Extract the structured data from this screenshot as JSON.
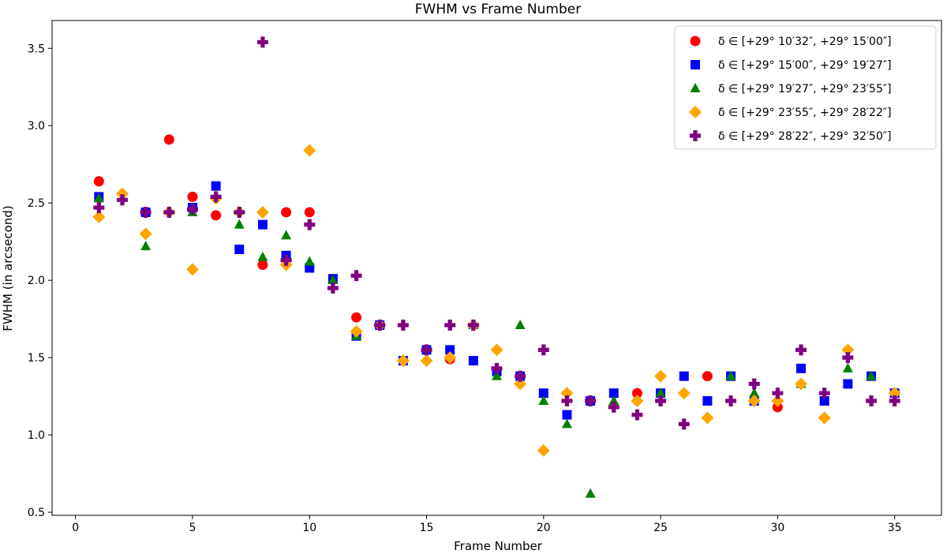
{
  "chart_data": {
    "type": "scatter",
    "title": "FWHM vs Frame Number",
    "xlabel": "Frame Number",
    "ylabel": "FWHM (in arcsecond)",
    "xlim": [
      -1,
      37
    ],
    "ylim": [
      0.48,
      3.68
    ],
    "xticks": [
      0,
      5,
      10,
      15,
      20,
      25,
      30,
      35
    ],
    "yticks": [
      0.5,
      1.0,
      1.5,
      2.0,
      2.5,
      3.0,
      3.5
    ],
    "xtick_labels": [
      "0",
      "5",
      "10",
      "15",
      "20",
      "25",
      "30",
      "35"
    ],
    "ytick_labels": [
      "0.5",
      "1.0",
      "1.5",
      "2.0",
      "2.5",
      "3.0",
      "3.5"
    ],
    "grid": false,
    "legend_position": "top-right",
    "series": [
      {
        "name": "δ ∈ [+29° 10′32″, +29° 15′00″]",
        "color": "#ff0000",
        "marker": "circle",
        "points": [
          [
            1,
            2.64
          ],
          [
            4,
            2.91
          ],
          [
            5,
            2.54
          ],
          [
            6,
            2.42
          ],
          [
            8,
            2.1
          ],
          [
            9,
            2.44
          ],
          [
            10,
            2.44
          ],
          [
            12,
            1.76
          ],
          [
            16,
            1.49
          ],
          [
            24,
            1.27
          ],
          [
            27,
            1.38
          ],
          [
            30,
            1.18
          ]
        ]
      },
      {
        "name": "δ ∈ [+29° 15′00″, +29° 19′27″]",
        "color": "#0000ff",
        "marker": "square",
        "points": [
          [
            1,
            2.54
          ],
          [
            3,
            2.44
          ],
          [
            5,
            2.47
          ],
          [
            6,
            2.61
          ],
          [
            7,
            2.2
          ],
          [
            8,
            2.36
          ],
          [
            9,
            2.16
          ],
          [
            10,
            2.08
          ],
          [
            11,
            2.01
          ],
          [
            12,
            1.64
          ],
          [
            13,
            1.71
          ],
          [
            14,
            1.48
          ],
          [
            15,
            1.55
          ],
          [
            16,
            1.55
          ],
          [
            17,
            1.48
          ],
          [
            18,
            1.41
          ],
          [
            19,
            1.38
          ],
          [
            20,
            1.27
          ],
          [
            21,
            1.13
          ],
          [
            22,
            1.22
          ],
          [
            23,
            1.27
          ],
          [
            25,
            1.27
          ],
          [
            26,
            1.38
          ],
          [
            27,
            1.22
          ],
          [
            28,
            1.38
          ],
          [
            29,
            1.22
          ],
          [
            31,
            1.43
          ],
          [
            32,
            1.22
          ],
          [
            33,
            1.33
          ],
          [
            34,
            1.38
          ],
          [
            35,
            1.27
          ]
        ]
      },
      {
        "name": "δ ∈ [+29° 19′27″, +29° 23′55″]",
        "color": "#008000",
        "marker": "triangle",
        "points": [
          [
            1,
            2.53
          ],
          [
            3,
            2.22
          ],
          [
            5,
            2.44
          ],
          [
            7,
            2.36
          ],
          [
            8,
            2.15
          ],
          [
            9,
            2.29
          ],
          [
            10,
            2.12
          ],
          [
            11,
            2.0
          ],
          [
            12,
            1.64
          ],
          [
            17,
            1.71
          ],
          [
            18,
            1.38
          ],
          [
            19,
            1.71
          ],
          [
            20,
            1.22
          ],
          [
            21,
            1.07
          ],
          [
            22,
            0.62
          ],
          [
            23,
            1.22
          ],
          [
            25,
            1.27
          ],
          [
            28,
            1.38
          ],
          [
            29,
            1.27
          ],
          [
            31,
            1.33
          ],
          [
            33,
            1.43
          ],
          [
            34,
            1.38
          ]
        ]
      },
      {
        "name": "δ ∈ [+29° 23′55″, +29° 28′22″]",
        "color": "#ffa500",
        "marker": "diamond",
        "points": [
          [
            1,
            2.41
          ],
          [
            2,
            2.56
          ],
          [
            3,
            2.3
          ],
          [
            4,
            2.44
          ],
          [
            5,
            2.07
          ],
          [
            6,
            2.53
          ],
          [
            7,
            2.44
          ],
          [
            8,
            2.44
          ],
          [
            9,
            2.1
          ],
          [
            10,
            2.84
          ],
          [
            12,
            1.67
          ],
          [
            13,
            1.71
          ],
          [
            14,
            1.48
          ],
          [
            15,
            1.48
          ],
          [
            16,
            1.5
          ],
          [
            17,
            1.71
          ],
          [
            18,
            1.55
          ],
          [
            19,
            1.33
          ],
          [
            20,
            0.9
          ],
          [
            21,
            1.27
          ],
          [
            24,
            1.22
          ],
          [
            25,
            1.38
          ],
          [
            26,
            1.27
          ],
          [
            27,
            1.11
          ],
          [
            29,
            1.22
          ],
          [
            30,
            1.22
          ],
          [
            31,
            1.33
          ],
          [
            32,
            1.11
          ],
          [
            33,
            1.55
          ],
          [
            35,
            1.27
          ]
        ]
      },
      {
        "name": "δ ∈ [+29° 28′22″, +29° 32′50″]",
        "color": "#800080",
        "marker": "plus",
        "points": [
          [
            1,
            2.47
          ],
          [
            2,
            2.52
          ],
          [
            3,
            2.44
          ],
          [
            4,
            2.44
          ],
          [
            5,
            2.46
          ],
          [
            6,
            2.54
          ],
          [
            7,
            2.44
          ],
          [
            8,
            3.54
          ],
          [
            9,
            2.13
          ],
          [
            10,
            2.36
          ],
          [
            11,
            1.95
          ],
          [
            12,
            2.03
          ],
          [
            13,
            1.71
          ],
          [
            14,
            1.71
          ],
          [
            15,
            1.55
          ],
          [
            16,
            1.71
          ],
          [
            17,
            1.71
          ],
          [
            18,
            1.43
          ],
          [
            19,
            1.38
          ],
          [
            20,
            1.55
          ],
          [
            21,
            1.22
          ],
          [
            22,
            1.22
          ],
          [
            23,
            1.18
          ],
          [
            24,
            1.13
          ],
          [
            25,
            1.22
          ],
          [
            26,
            1.07
          ],
          [
            28,
            1.22
          ],
          [
            29,
            1.33
          ],
          [
            30,
            1.27
          ],
          [
            31,
            1.55
          ],
          [
            32,
            1.27
          ],
          [
            33,
            1.5
          ],
          [
            34,
            1.22
          ],
          [
            35,
            1.22
          ]
        ]
      }
    ]
  }
}
